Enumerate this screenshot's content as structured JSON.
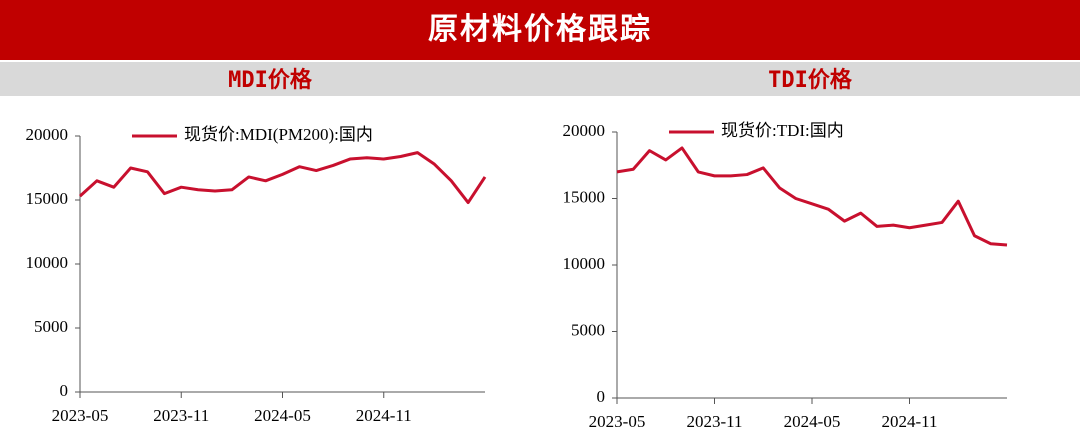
{
  "header": {
    "title": "原材料价格跟踪"
  },
  "chart_data": [
    {
      "type": "line",
      "title": "MDI价格",
      "x": [
        "2023-05",
        "2023-06",
        "2023-07",
        "2023-08",
        "2023-09",
        "2023-10",
        "2023-11",
        "2023-12",
        "2024-01",
        "2024-02",
        "2024-03",
        "2024-04",
        "2024-05",
        "2024-06",
        "2024-07",
        "2024-08",
        "2024-09",
        "2024-10",
        "2024-11",
        "2024-12",
        "2025-01",
        "2025-02",
        "2025-03",
        "2025-04",
        "2025-05"
      ],
      "xticks": [
        "2023-05",
        "2023-11",
        "2024-05",
        "2024-11"
      ],
      "series": [
        {
          "name": "现货价:MDI(PM200):国内",
          "color": "#c8102e",
          "values": [
            15300,
            16500,
            16000,
            17500,
            17200,
            15500,
            16000,
            15800,
            15700,
            15800,
            16800,
            16500,
            17000,
            17600,
            17300,
            17700,
            18200,
            18300,
            18200,
            18400,
            18700,
            17800,
            16500,
            14800,
            16800
          ]
        }
      ],
      "ylim": [
        0,
        20000
      ],
      "yticks": [
        0,
        5000,
        10000,
        15000,
        20000
      ]
    },
    {
      "type": "line",
      "title": "TDI价格",
      "x": [
        "2023-05",
        "2023-06",
        "2023-07",
        "2023-08",
        "2023-09",
        "2023-10",
        "2023-11",
        "2023-12",
        "2024-01",
        "2024-02",
        "2024-03",
        "2024-04",
        "2024-05",
        "2024-06",
        "2024-07",
        "2024-08",
        "2024-09",
        "2024-10",
        "2024-11",
        "2024-12",
        "2025-01",
        "2025-02",
        "2025-03",
        "2025-04",
        "2025-05"
      ],
      "xticks": [
        "2023-05",
        "2023-11",
        "2024-05",
        "2024-11"
      ],
      "series": [
        {
          "name": "现货价:TDI:国内",
          "color": "#c8102e",
          "values": [
            17000,
            17200,
            18600,
            17900,
            18800,
            17000,
            16700,
            16700,
            16800,
            17300,
            15800,
            15000,
            14600,
            14200,
            13300,
            13900,
            12900,
            13000,
            12800,
            13000,
            13200,
            14800,
            12200,
            11600,
            11500
          ]
        }
      ],
      "ylim": [
        0,
        20000
      ],
      "yticks": [
        0,
        5000,
        10000,
        15000,
        20000
      ]
    }
  ]
}
